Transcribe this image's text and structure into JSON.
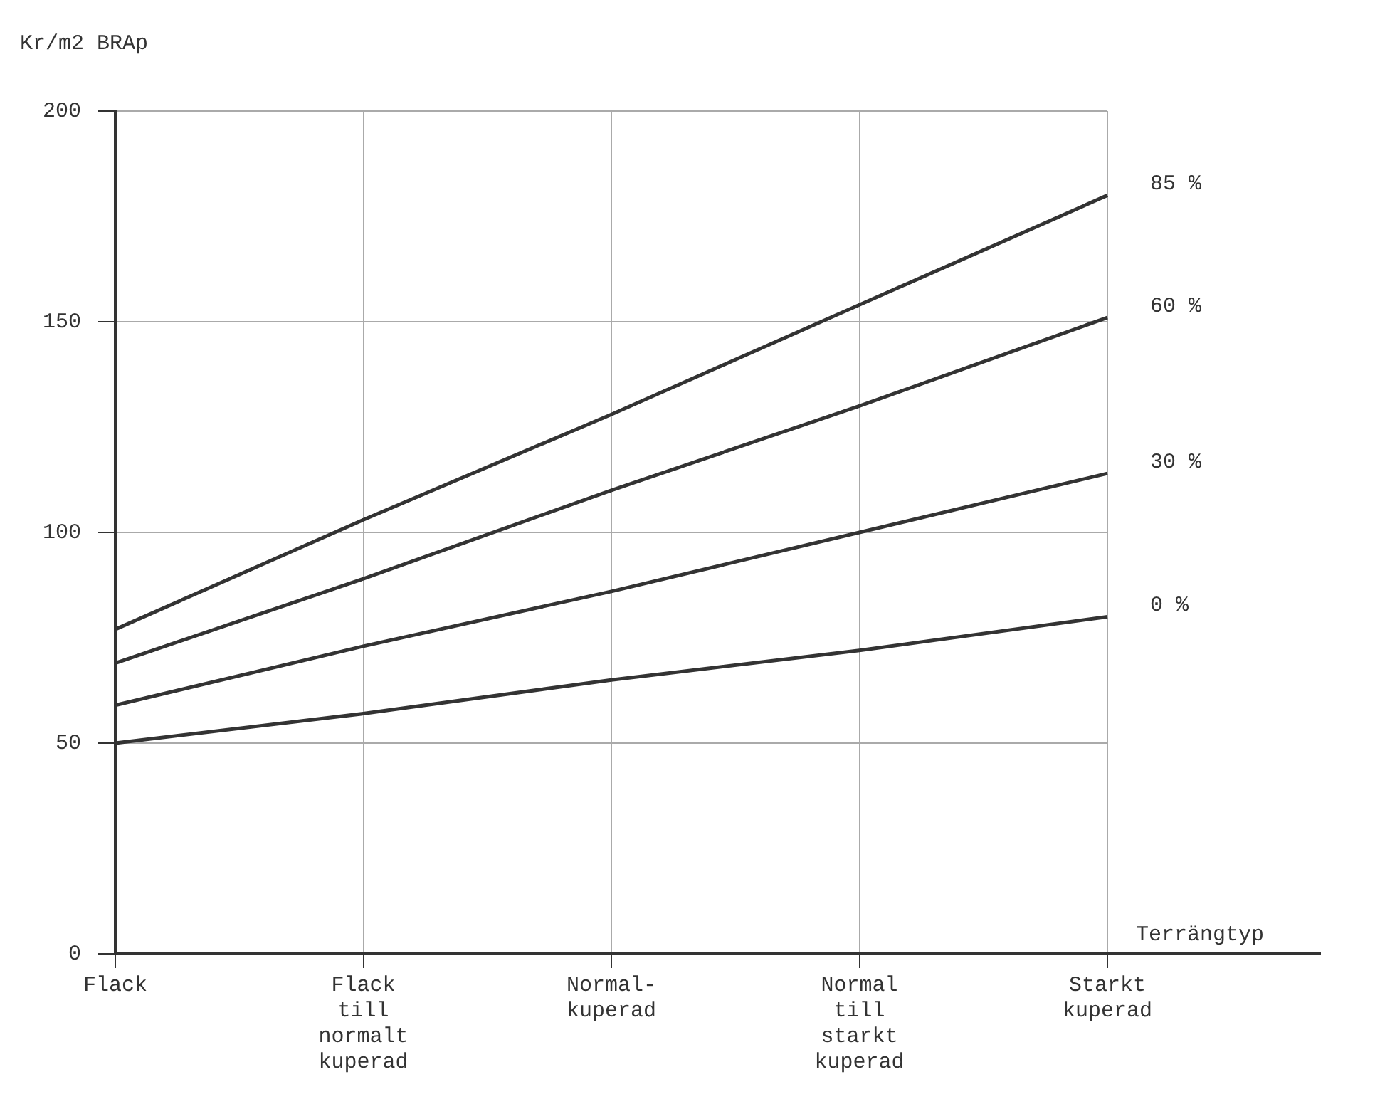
{
  "chart_data": {
    "type": "line",
    "ylabel": "Kr/m2 BRAp",
    "xlabel": "Terrängtyp",
    "categories": [
      "Flack",
      "Flack till normalt kuperad",
      "Normal-kuperad",
      "Normal till starkt kuperad",
      "Starkt kuperad"
    ],
    "series": [
      {
        "name": "85 %",
        "color": "#333333",
        "values": [
          77,
          103,
          128,
          154,
          180
        ]
      },
      {
        "name": "60 %",
        "color": "#333333",
        "values": [
          69,
          89,
          110,
          130,
          151
        ]
      },
      {
        "name": "30 %",
        "color": "#333333",
        "values": [
          59,
          73,
          86,
          100,
          114
        ]
      },
      {
        "name": "0 %",
        "color": "#333333",
        "values": [
          50,
          57,
          65,
          72,
          80
        ]
      }
    ],
    "ylim": [
      0,
      200
    ],
    "yticks": [
      0,
      50,
      100,
      150,
      200
    ],
    "grid": true,
    "legend": false,
    "marker": "none",
    "line_style": "solid"
  }
}
